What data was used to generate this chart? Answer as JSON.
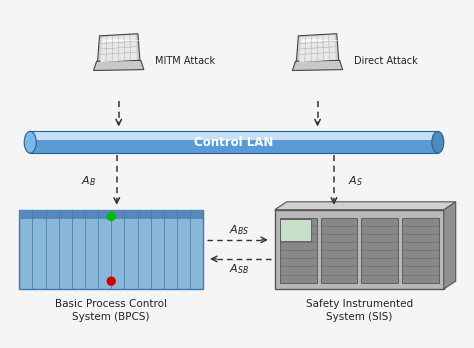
{
  "bg_color": "#f5f5f5",
  "lan_color": "#5b9bd5",
  "lan_highlight": "#c5dff5",
  "lan_shadow": "#2a6090",
  "lan_label": "Control LAN",
  "bpcs_label1": "Basic Process Control",
  "bpcs_label2": "System (BPCS)",
  "bpcs_color_main": "#7ab3e0",
  "bpcs_color_dark": "#3a7ab0",
  "bpcs_color_line": "#5588bb",
  "sis_label1": "Safety Instrumented",
  "sis_label2": "System (SIS)",
  "sis_color_main": "#b0b0b0",
  "sis_color_dark": "#707070",
  "sis_color_mod": "#888888",
  "mitm_label": "MITM Attack",
  "direct_label": "Direct Attack",
  "arrow_color": "#333333",
  "text_color": "#222222",
  "label_fontsize": 7.5,
  "lan_fontsize": 8.5
}
